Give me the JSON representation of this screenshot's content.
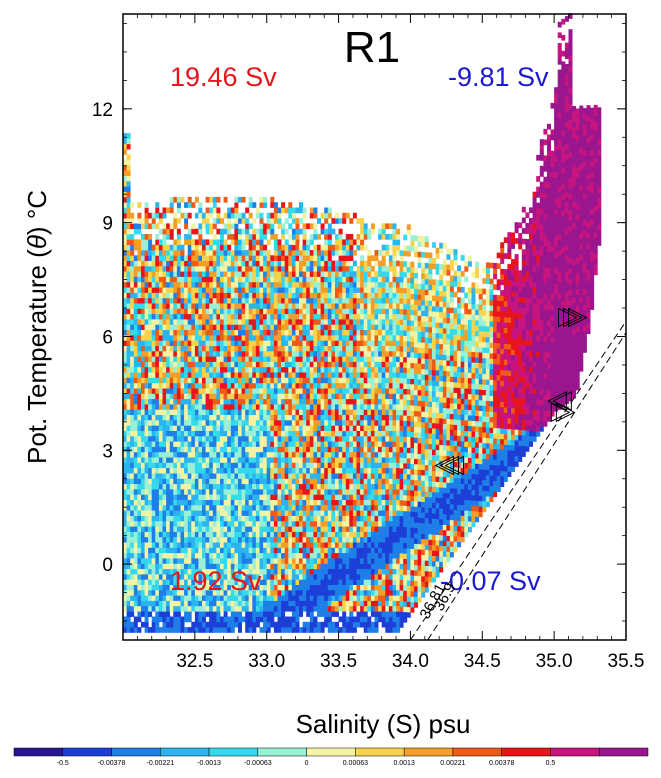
{
  "chart_data": {
    "type": "heatmap",
    "title": "R1",
    "xlabel": "Salinity (S) psu",
    "ylabel_parts": [
      "Pot. Temperature (",
      "θ",
      ") °C"
    ],
    "xlim": [
      32.0,
      35.5
    ],
    "ylim": [
      -2.0,
      14.5
    ],
    "x_ticks": [
      "32.5",
      "33.0",
      "33.5",
      "34.0",
      "34.5",
      "35.0",
      "35.5"
    ],
    "y_ticks": [
      "0",
      "3",
      "6",
      "9",
      "12"
    ],
    "annotations": [
      {
        "text": "19.46 Sv",
        "color": "#e8141c"
      },
      {
        "text": "-9.81 Sv",
        "color": "#1a1ad0"
      },
      {
        "text": "1.92 Sv",
        "color": "#e8141c"
      },
      {
        "text": "-0.07 Sv",
        "color": "#1a1ad0"
      }
    ],
    "isopycnal_labels": [
      "36.81",
      "36.9"
    ],
    "colorbar": {
      "labels": [
        "-0.5",
        "-0.00378",
        "-0.00221",
        "-0.0013",
        "-0.00063",
        "0",
        "0.00063",
        "0.0013",
        "0.00221",
        "0.00378",
        "0.5"
      ],
      "colors": [
        "#2a1490",
        "#1d3fd8",
        "#1f7fe8",
        "#2bb4f0",
        "#36d9ec",
        "#9af0d4",
        "#f4f3a4",
        "#f6d34a",
        "#f49e2a",
        "#ef5a18",
        "#e8141c",
        "#c8147e",
        "#9b168e"
      ]
    }
  }
}
